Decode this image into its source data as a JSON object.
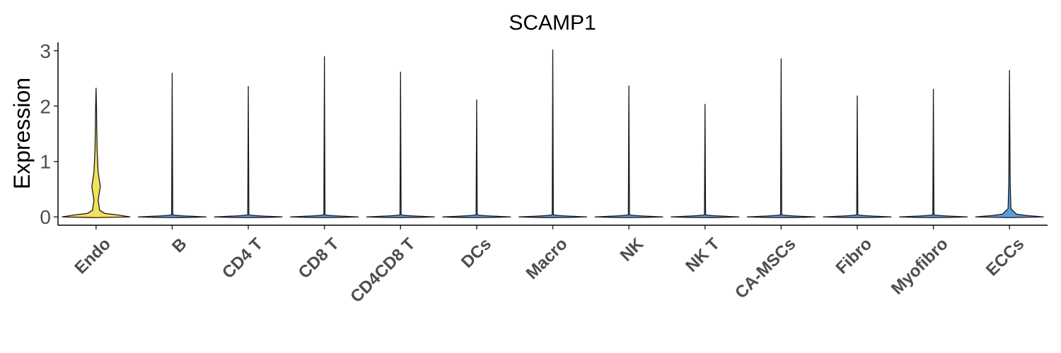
{
  "chart_data": {
    "type": "violin",
    "title": "SCAMP1",
    "ylabel": "Expression",
    "xlabel": "",
    "ylim": [
      -0.15,
      3.15
    ],
    "yticks": [
      "0",
      "1",
      "2",
      "3"
    ],
    "grid": false,
    "legend": "none",
    "categories": [
      "Endo",
      "B",
      "CD4 T",
      "CD8 T",
      "CD4CD8 T",
      "DCs",
      "Macro",
      "NK",
      "NK T",
      "CA-MSCs",
      "Fibro",
      "Myofibro",
      "ECCs"
    ],
    "max_values": [
      2.33,
      2.6,
      2.36,
      2.9,
      2.62,
      2.12,
      3.02,
      2.37,
      2.04,
      2.86,
      2.19,
      2.31,
      2.65
    ],
    "fill_colors": [
      "#F5E05A",
      "#4A90D9",
      "#4A90D9",
      "#4A90D9",
      "#4A90D9",
      "#4A90D9",
      "#4A90D9",
      "#4A90D9",
      "#4A90D9",
      "#4A90D9",
      "#4A90D9",
      "#4A90D9",
      "#4A90D9"
    ]
  }
}
